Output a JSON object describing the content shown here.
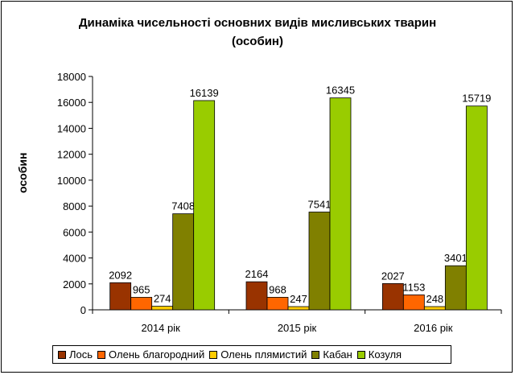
{
  "chart_data": {
    "type": "bar",
    "title_lines": [
      "Динаміка чисельності основних видів мисливських тварин",
      "(особин)"
    ],
    "ylabel": "особин",
    "xlabel": "",
    "ylim": [
      0,
      18000
    ],
    "yticks": [
      0,
      2000,
      4000,
      6000,
      8000,
      10000,
      12000,
      14000,
      16000,
      18000
    ],
    "grid": false,
    "legend_position": "bottom",
    "categories": [
      "2014 рік",
      "2015 рік",
      "2016 рік"
    ],
    "series": [
      {
        "name": "Лось",
        "color": "#993300",
        "values": [
          2092,
          2164,
          2027
        ]
      },
      {
        "name": "Олень благородний",
        "color": "#FF6600",
        "values": [
          965,
          968,
          1153
        ]
      },
      {
        "name": "Олень плямистий",
        "color": "#FFCC00",
        "values": [
          274,
          247,
          248
        ]
      },
      {
        "name": "Кабан",
        "color": "#808000",
        "values": [
          7408,
          7541,
          3401
        ]
      },
      {
        "name": "Козуля",
        "color": "#99CC00",
        "values": [
          16139,
          16345,
          15719
        ]
      }
    ]
  }
}
